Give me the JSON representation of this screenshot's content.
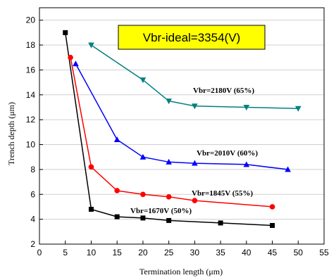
{
  "chart_data": {
    "type": "line",
    "xlabel": "Termination length (μm)",
    "ylabel": "Trench depth   (μm)",
    "xlim": [
      0,
      55
    ],
    "ylim": [
      2,
      21
    ],
    "xticks": [
      0,
      5,
      10,
      15,
      20,
      25,
      30,
      35,
      40,
      45,
      50,
      55
    ],
    "yticks": [
      2,
      4,
      6,
      8,
      10,
      12,
      14,
      16,
      18,
      20
    ],
    "grid": true,
    "annotation": "Vbr-ideal=3354(V)",
    "series": [
      {
        "name": "Vbr=1670V (50%)",
        "color": "#000000",
        "marker": "square",
        "x": [
          5,
          10,
          15,
          20,
          25,
          35,
          45
        ],
        "y": [
          19.0,
          4.8,
          4.2,
          4.1,
          3.9,
          3.7,
          3.5
        ]
      },
      {
        "name": "Vbr=1845V (55%)",
        "color": "#ff0000",
        "marker": "circle",
        "x": [
          6,
          10,
          15,
          20,
          25,
          30,
          45
        ],
        "y": [
          17.0,
          8.2,
          6.3,
          6.0,
          5.8,
          5.5,
          5.0
        ]
      },
      {
        "name": "Vbr=2010V (60%)",
        "color": "#0000ff",
        "marker": "triangle-up",
        "x": [
          7,
          15,
          20,
          25,
          30,
          40,
          48
        ],
        "y": [
          16.5,
          10.4,
          9.0,
          8.6,
          8.5,
          8.4,
          8.0
        ]
      },
      {
        "name": "Vbr=2180V (65%)",
        "color": "#008080",
        "marker": "triangle-down",
        "x": [
          10,
          20,
          25,
          30,
          40,
          50
        ],
        "y": [
          18.0,
          15.2,
          13.5,
          13.1,
          13.0,
          12.9
        ]
      }
    ]
  }
}
